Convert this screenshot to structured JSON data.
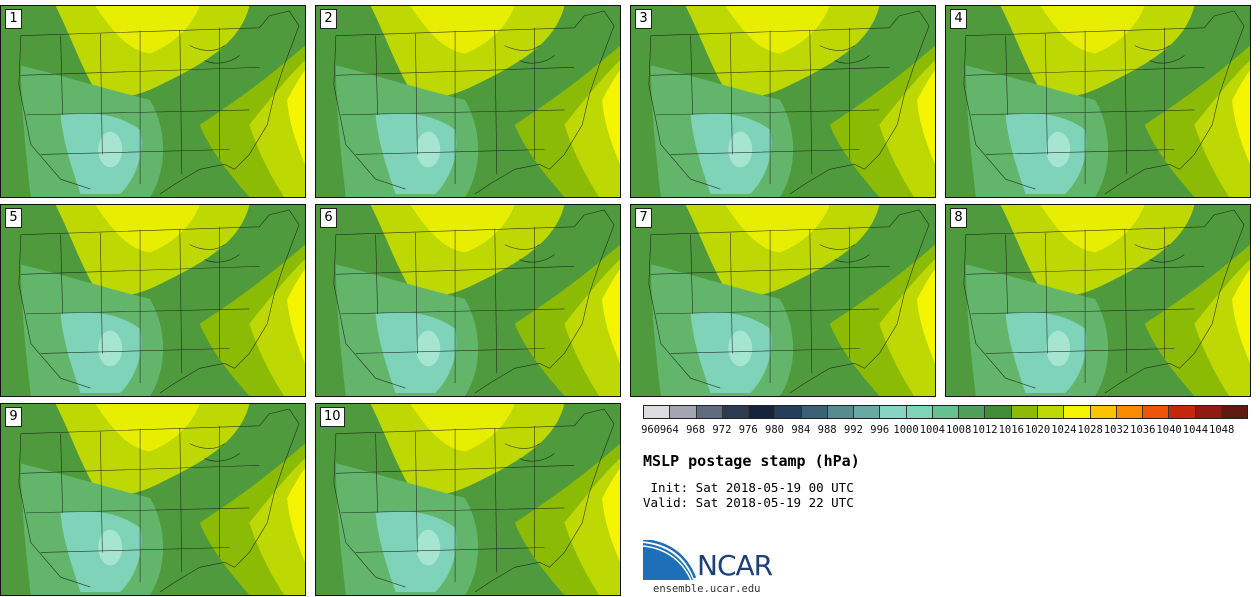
{
  "panels": [
    {
      "label": "1"
    },
    {
      "label": "2"
    },
    {
      "label": "3"
    },
    {
      "label": "4"
    },
    {
      "label": "5"
    },
    {
      "label": "6"
    },
    {
      "label": "7"
    },
    {
      "label": "8"
    },
    {
      "label": "9"
    },
    {
      "label": "10"
    }
  ],
  "colorbar": {
    "ticks": [
      "960",
      "964",
      "968",
      "972",
      "976",
      "980",
      "984",
      "988",
      "992",
      "996",
      "1000",
      "1004",
      "1008",
      "1012",
      "1016",
      "1020",
      "1024",
      "1028",
      "1032",
      "1036",
      "1040",
      "1044",
      "1048"
    ],
    "colors": [
      "#dcdde0",
      "#a3a6b1",
      "#5e6a80",
      "#2c3a52",
      "#15233b",
      "#243d58",
      "#3a6274",
      "#568c8f",
      "#6aa8a3",
      "#87d3c2",
      "#7fd3b9",
      "#67c18e",
      "#4ea058",
      "#3f8d35",
      "#8bbb05",
      "#bdd802",
      "#f5f502",
      "#fbc402",
      "#fb8a02",
      "#f05408",
      "#c8260c",
      "#8e1a10",
      "#5f1a10"
    ]
  },
  "title": "MSLP postage stamp (hPa)",
  "init": " Init: Sat 2018-05-19 00 UTC",
  "valid": "Valid: Sat 2018-05-19 22 UTC",
  "logo": {
    "name": "NCAR",
    "url": "ensemble.ucar.edu",
    "colors": {
      "blue": "#1d6fb8",
      "navy": "#1d3f7a"
    }
  },
  "map_colors": {
    "dark_green": "#4f9a3c",
    "mid_green": "#62b56a",
    "light_teal": "#7fd3b9",
    "pale_teal": "#a6e6d0",
    "olive": "#8bbb05",
    "yellow_green": "#bdd802",
    "yellow": "#f5f502"
  }
}
